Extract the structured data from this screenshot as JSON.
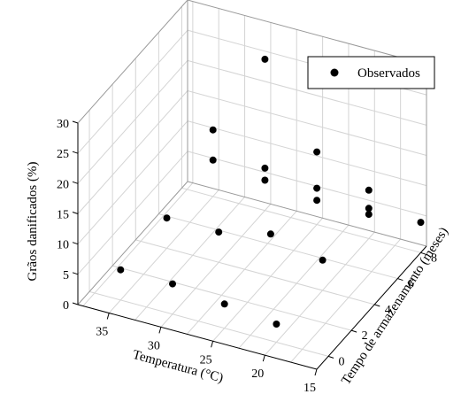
{
  "chart_data": {
    "type": "scatter",
    "projection": "3d",
    "series": [
      {
        "name": "Observados",
        "color": "#000000",
        "points": [
          {
            "x": 35,
            "y": 0,
            "z": 5
          },
          {
            "x": 30,
            "y": 0,
            "z": 5
          },
          {
            "x": 25,
            "y": 0,
            "z": 4
          },
          {
            "x": 20,
            "y": 0,
            "z": 3
          },
          {
            "x": 35,
            "y": 4,
            "z": 5
          },
          {
            "x": 30,
            "y": 4,
            "z": 5
          },
          {
            "x": 25,
            "y": 4,
            "z": 7
          },
          {
            "x": 20,
            "y": 4,
            "z": 5
          },
          {
            "x": 35,
            "y": 8,
            "z": 6
          },
          {
            "x": 30,
            "y": 8,
            "z": 5
          },
          {
            "x": 25,
            "y": 8,
            "z": 6
          },
          {
            "x": 20,
            "y": 8,
            "z": 4
          },
          {
            "x": 35,
            "y": 8,
            "z": 11
          },
          {
            "x": 30,
            "y": 8,
            "z": 7
          },
          {
            "x": 25,
            "y": 8,
            "z": 4
          },
          {
            "x": 20,
            "y": 8,
            "z": 5
          },
          {
            "x": 30,
            "y": 8,
            "z": 25
          },
          {
            "x": 25,
            "y": 8,
            "z": 12
          },
          {
            "x": 20,
            "y": 8,
            "z": 8
          },
          {
            "x": 15,
            "y": 8,
            "z": 5
          }
        ]
      }
    ],
    "xlabel": "Temperatura (°C)",
    "ylabel": "Tempo de armazenamento (meses)",
    "zlabel": "Grãos danificados (%)",
    "xlim": [
      15,
      38
    ],
    "ylim": [
      -1,
      8.5
    ],
    "zlim": [
      0,
      30
    ],
    "xticks": [
      "35",
      "30",
      "25",
      "20",
      "15"
    ],
    "yticks": [
      "0",
      "2",
      "4",
      "6",
      "8"
    ],
    "zticks": [
      "0",
      "5",
      "10",
      "15",
      "20",
      "25",
      "30"
    ],
    "grid": true,
    "legend_position": "top-right",
    "legend_entries": [
      "Observados"
    ]
  }
}
